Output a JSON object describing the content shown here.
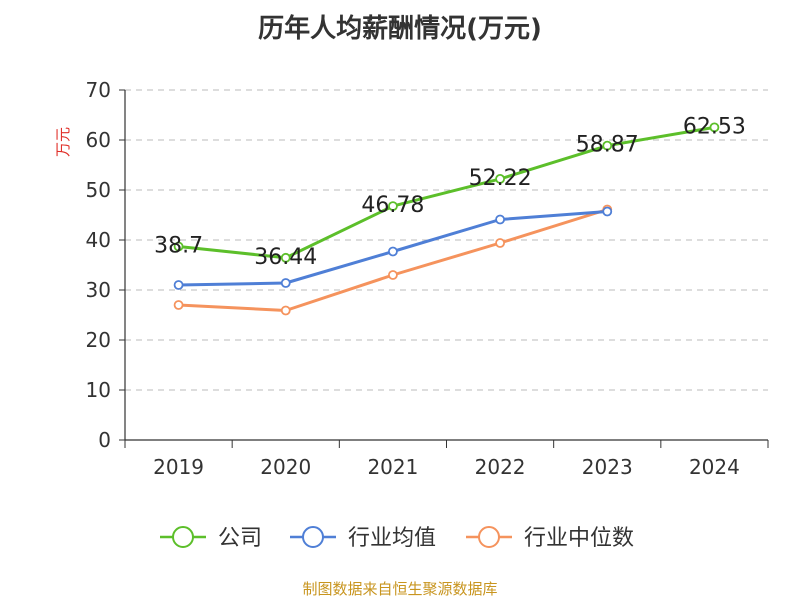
{
  "title": "历年人均薪酬情况(万元)",
  "footer": "制图数据来自恒生聚源数据库",
  "chart_data": {
    "type": "line",
    "categories": [
      "2019",
      "2020",
      "2021",
      "2022",
      "2023",
      "2024"
    ],
    "ylabel": "万元",
    "ylim": [
      0,
      70
    ],
    "yticks": [
      0,
      10,
      20,
      30,
      40,
      50,
      60,
      70
    ],
    "grid": true,
    "legend_position": "bottom",
    "series": [
      {
        "name": "公司",
        "color": "#5cbf2a",
        "values": [
          38.7,
          36.44,
          46.78,
          52.22,
          58.87,
          62.53
        ],
        "labels": [
          "38.7",
          "36.44",
          "46.78",
          "52.22",
          "58.87",
          "62.53"
        ]
      },
      {
        "name": "行业均值",
        "color": "#4f7fd6",
        "values": [
          31.0,
          31.4,
          37.7,
          44.1,
          45.7,
          null
        ]
      },
      {
        "name": "行业中位数",
        "color": "#f5935d",
        "values": [
          27.0,
          25.9,
          33.0,
          39.4,
          46.1,
          null
        ]
      }
    ]
  }
}
